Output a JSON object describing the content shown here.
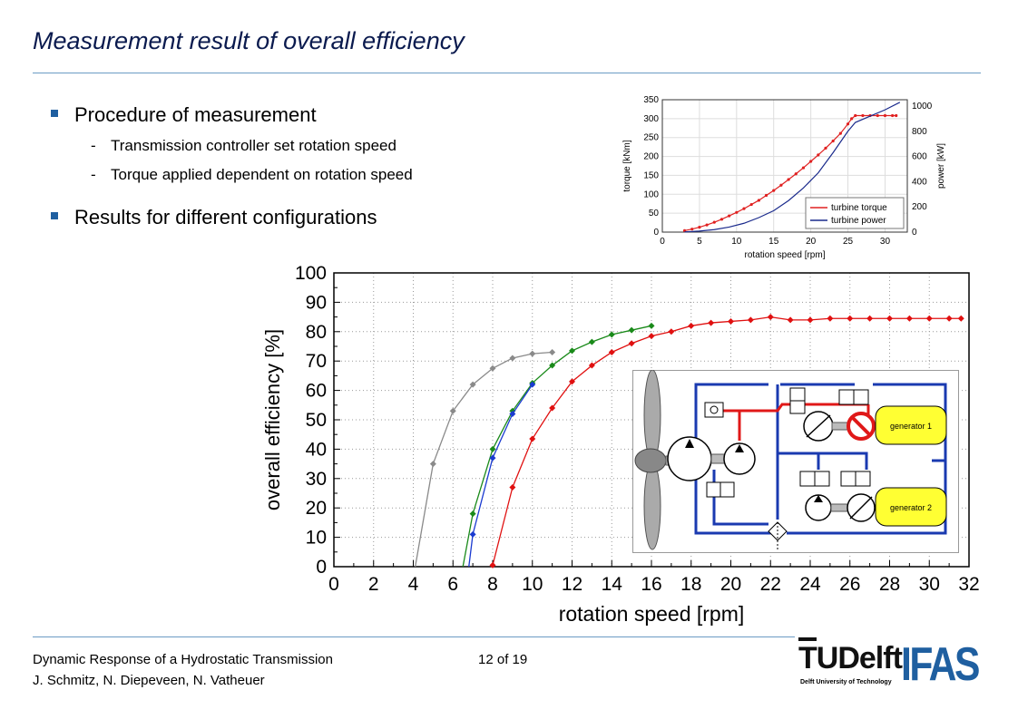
{
  "slide": {
    "title": "Measurement result of overall efficiency",
    "bullets": [
      {
        "text": "Procedure of measurement",
        "sub": [
          "Transmission controller set rotation speed",
          "Torque applied dependent on rotation speed"
        ]
      },
      {
        "text": "Results for different configurations",
        "sub": []
      }
    ],
    "footer": {
      "line1": "Dynamic Response of a Hydrostatic Transmission",
      "line2": "J. Schmitz, N. Diepeveen, N. Vatheuer",
      "page": "12 of 19"
    },
    "logos": {
      "tudelft_text": "Delft",
      "tudelft_sub": "Delft University of Technology",
      "ifas": "IFAS"
    }
  },
  "chart_data": [
    {
      "type": "line",
      "xlabel": "rotation speed [rpm]",
      "ylabel": "torque [kNm]",
      "y2label": "power [kW]",
      "xlim": [
        0,
        33
      ],
      "ylim": [
        0,
        350
      ],
      "y2lim": [
        0,
        1050
      ],
      "xticks": [
        0,
        5,
        10,
        15,
        20,
        25,
        30
      ],
      "yticks": [
        0,
        50,
        100,
        150,
        200,
        250,
        300,
        350
      ],
      "y2ticks": [
        0,
        200,
        400,
        600,
        800,
        1000
      ],
      "grid": true,
      "legend_position": "bottom-right",
      "series": [
        {
          "name": "turbine torque",
          "axis": "left",
          "color": "#e02020",
          "markers": true,
          "x": [
            3,
            4,
            5,
            6,
            7,
            8,
            9,
            10,
            11,
            12,
            13,
            14,
            15,
            16,
            17,
            18,
            19,
            20,
            21,
            22,
            23,
            24,
            25,
            25.5,
            26,
            27,
            28,
            29,
            30,
            31,
            31.5
          ],
          "y": [
            4,
            8,
            13,
            19,
            26,
            34,
            43,
            52,
            62,
            73,
            84,
            97,
            110,
            124,
            139,
            154,
            170,
            187,
            204,
            222,
            241,
            261,
            286,
            300,
            308,
            308,
            308,
            308,
            308,
            308,
            308
          ]
        },
        {
          "name": "turbine power",
          "axis": "right",
          "color": "#1a2a8c",
          "markers": false,
          "x": [
            3,
            5,
            7,
            9,
            11,
            13,
            15,
            17,
            19,
            21,
            23,
            25,
            26,
            28,
            30,
            32
          ],
          "y": [
            2,
            8,
            20,
            40,
            70,
            115,
            170,
            250,
            350,
            470,
            630,
            800,
            870,
            920,
            970,
            1030
          ]
        }
      ]
    },
    {
      "type": "line",
      "xlabel": "rotation speed [rpm]",
      "ylabel": "overall efficiency [%]",
      "xlim": [
        0,
        32
      ],
      "ylim": [
        0,
        100
      ],
      "xticks": [
        0,
        2,
        4,
        6,
        8,
        10,
        12,
        14,
        16,
        18,
        20,
        22,
        24,
        26,
        28,
        30,
        32
      ],
      "yticks": [
        0,
        10,
        20,
        30,
        40,
        50,
        60,
        70,
        80,
        90,
        100
      ],
      "grid": true,
      "series": [
        {
          "color": "#8a8a8a",
          "x": [
            4.1,
            5,
            6,
            7,
            8,
            9,
            10,
            11
          ],
          "y": [
            0,
            35,
            53,
            62,
            67.5,
            71,
            72.5,
            73
          ]
        },
        {
          "color": "#1a8a1a",
          "x": [
            6.5,
            7,
            8,
            9,
            10,
            11,
            12,
            13,
            14,
            15,
            16
          ],
          "y": [
            0,
            18,
            40,
            53,
            62.5,
            68.5,
            73.5,
            76.5,
            79,
            80.5,
            82
          ]
        },
        {
          "color": "#1a3ad0",
          "x": [
            6.8,
            7,
            8,
            9,
            10
          ],
          "y": [
            0,
            11,
            37,
            52,
            62
          ]
        },
        {
          "color": "#e01010",
          "x": [
            7.9,
            8,
            9,
            10,
            11,
            12,
            13,
            14,
            15,
            16,
            17,
            18,
            19,
            20,
            21,
            22,
            23,
            24,
            25,
            26,
            27,
            28,
            29,
            30,
            31,
            31.6
          ],
          "y": [
            0,
            0.5,
            27,
            43.5,
            54,
            63,
            68.5,
            73,
            76,
            78.5,
            80,
            82,
            83,
            83.5,
            84,
            85,
            84,
            84,
            84.5,
            84.5,
            84.5,
            84.5,
            84.5,
            84.5,
            84.5,
            84.5
          ]
        }
      ]
    }
  ],
  "diagram": {
    "generator1_label": "generator 1",
    "generator2_label": "generator 2"
  }
}
